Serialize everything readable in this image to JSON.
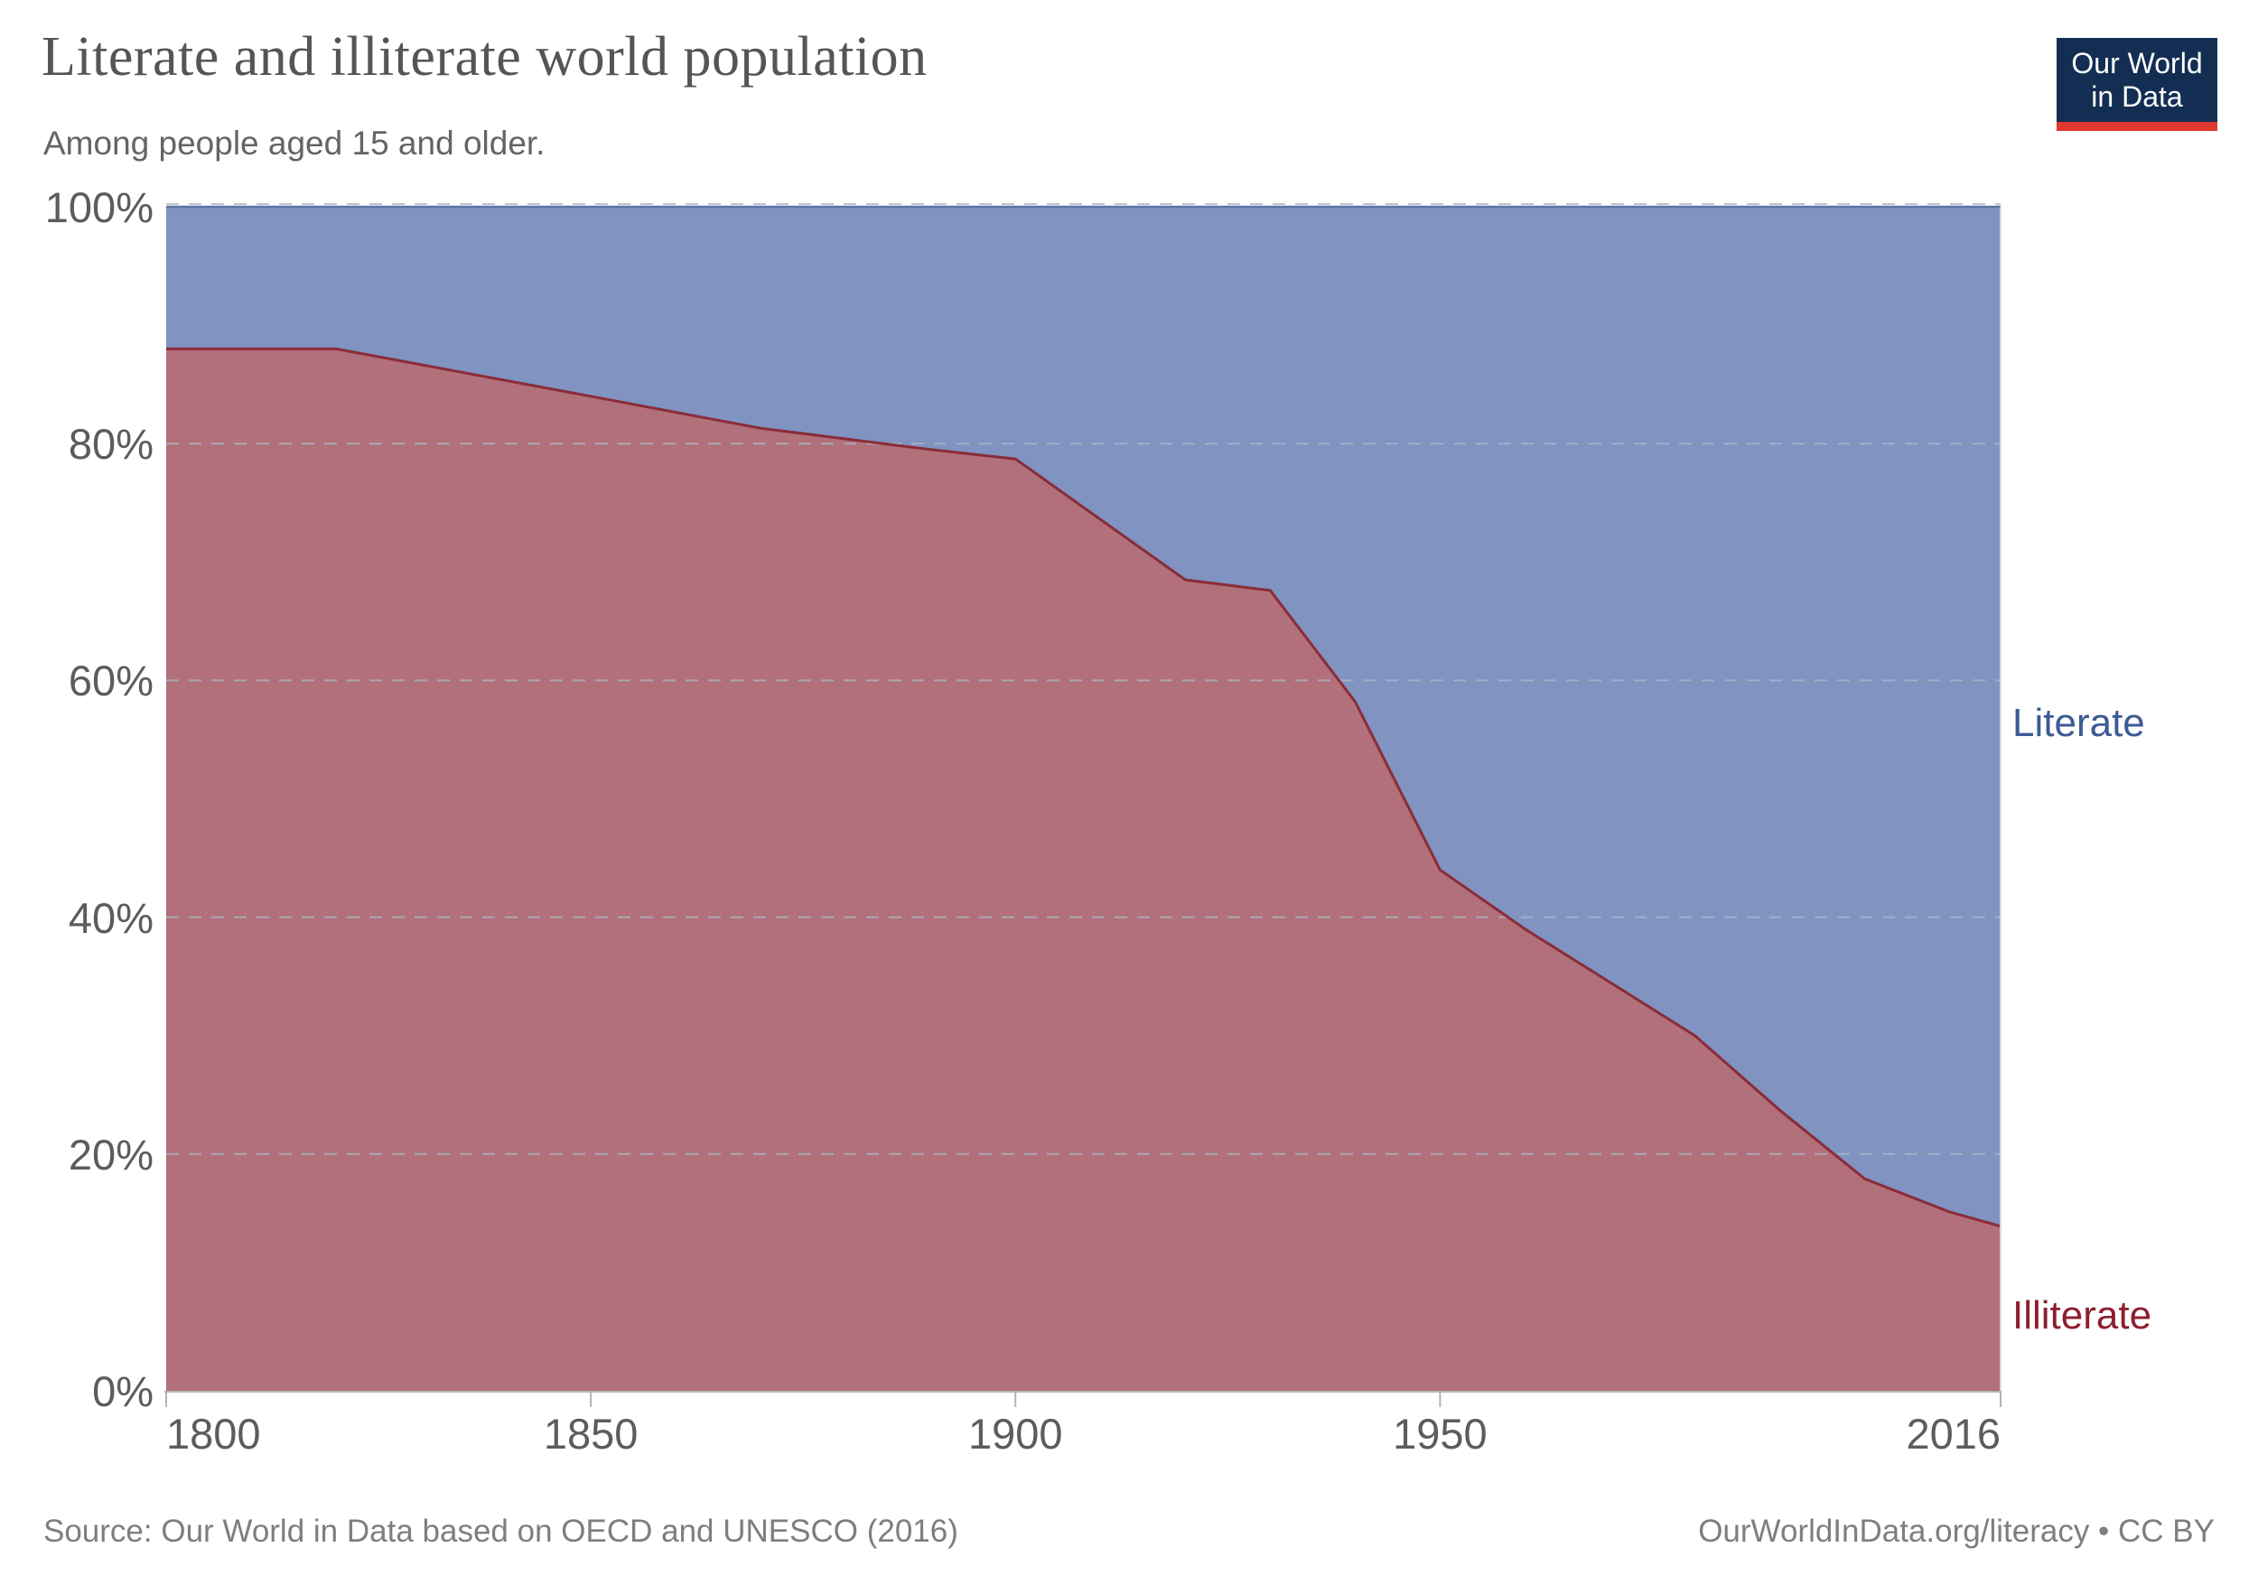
{
  "header": {
    "title": "Literate and illiterate world population",
    "subtitle": "Among people aged 15 and older."
  },
  "logo": {
    "line1": "Our World",
    "line2": "in Data",
    "bg_color": "#132e52",
    "bar_color": "#e0392f"
  },
  "footer": {
    "source": "Source: Our World in Data based on OECD and UNESCO (2016)",
    "link": "OurWorldInData.org/literacy • CC BY"
  },
  "colors": {
    "literate_fill": "#8093c1",
    "illiterate_fill": "#b1707a",
    "boundary_line": "#8b2c39",
    "top_edge_line": "#5a72a4",
    "gridline": "#adb5c6",
    "axis_line": "#b3b3b3",
    "plot_right_border": "#d9d9d9",
    "tick_label": "#5c5c5c",
    "literate_label": "#3c5a94",
    "illiterate_label": "#8e1f2f"
  },
  "chart_data": {
    "type": "area",
    "stacked_percent": true,
    "title": "Literate and illiterate world population",
    "subtitle": "Among people aged 15 and older.",
    "x": [
      1800,
      1820,
      1850,
      1870,
      1890,
      1900,
      1910,
      1920,
      1930,
      1940,
      1950,
      1960,
      1970,
      1980,
      1990,
      2000,
      2010,
      2016
    ],
    "series": [
      {
        "name": "Illiterate",
        "values": [
          88.0,
          88.0,
          84.0,
          81.3,
          79.5,
          78.7,
          73.6,
          68.5,
          67.6,
          58.2,
          44.0,
          39.0,
          34.5,
          30.0,
          23.7,
          17.9,
          15.1,
          13.9
        ],
        "color": "#b1707a",
        "label_color": "#8e1f2f",
        "label_y": 1432
      },
      {
        "name": "Literate",
        "values": [
          12.0,
          12.0,
          16.0,
          18.7,
          20.5,
          21.3,
          26.4,
          31.5,
          32.4,
          41.8,
          56.0,
          61.0,
          65.5,
          70.0,
          76.3,
          82.1,
          84.9,
          86.1
        ],
        "color": "#8093c1",
        "label_color": "#3c5a94",
        "label_y": 776
      }
    ],
    "xlim": [
      1800,
      2016
    ],
    "ylim": [
      0,
      100
    ],
    "grid": "dashed horizontal",
    "legend_position": "right-of-plot",
    "x_ticks": [
      {
        "year": 1800,
        "label": "1800",
        "align": "start"
      },
      {
        "year": 1850,
        "label": "1850",
        "align": "middle"
      },
      {
        "year": 1900,
        "label": "1900",
        "align": "middle"
      },
      {
        "year": 1950,
        "label": "1950",
        "align": "middle"
      },
      {
        "year": 2016,
        "label": "2016",
        "align": "end"
      }
    ],
    "y_ticks": [
      {
        "value": 100,
        "label": "100%"
      },
      {
        "value": 80,
        "label": "80%"
      },
      {
        "value": 60,
        "label": "60%"
      },
      {
        "value": 40,
        "label": "40%"
      },
      {
        "value": 20,
        "label": "20%"
      },
      {
        "value": 0,
        "label": "0%"
      }
    ]
  }
}
